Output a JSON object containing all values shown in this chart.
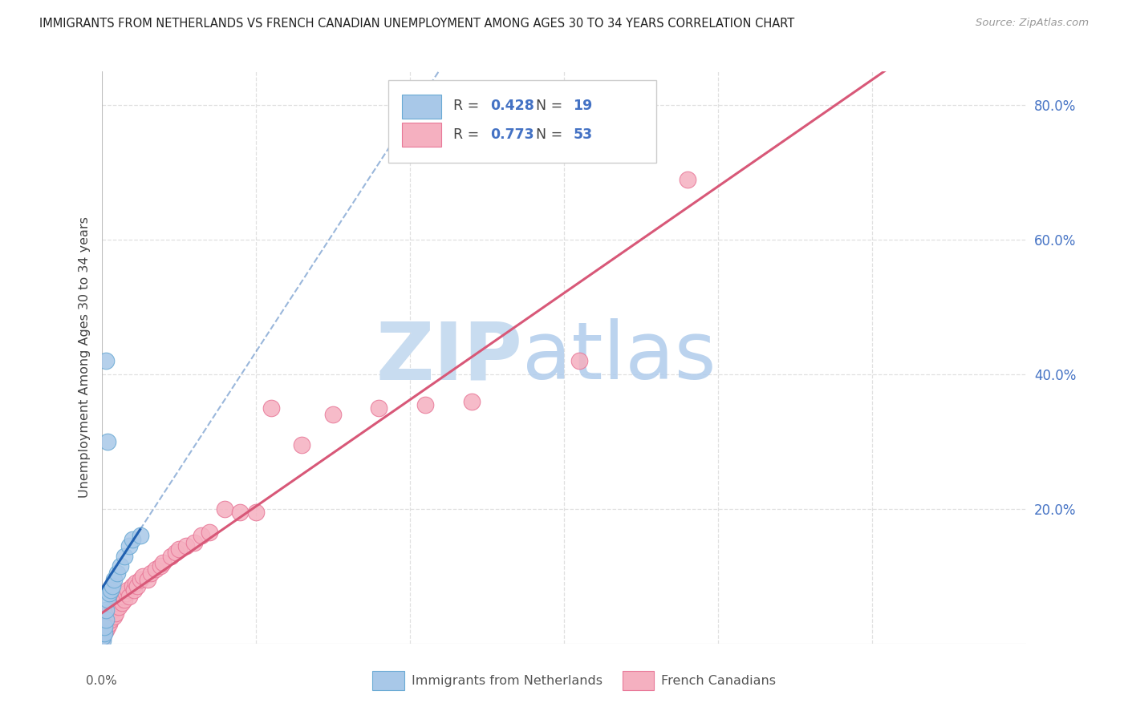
{
  "title": "IMMIGRANTS FROM NETHERLANDS VS FRENCH CANADIAN UNEMPLOYMENT AMONG AGES 30 TO 34 YEARS CORRELATION CHART",
  "source": "Source: ZipAtlas.com",
  "ylabel": "Unemployment Among Ages 30 to 34 years",
  "xlim": [
    0.0,
    0.6
  ],
  "ylim": [
    0.0,
    0.85
  ],
  "xtick_vals": [
    0.0,
    0.1,
    0.2,
    0.3,
    0.4,
    0.5,
    0.6
  ],
  "ytick_right_vals": [
    0.0,
    0.2,
    0.4,
    0.6,
    0.8
  ],
  "ytick_right_labels": [
    "",
    "20.0%",
    "40.0%",
    "60.0%",
    "80.0%"
  ],
  "netherlands_color": "#a8c8e8",
  "netherlands_edge": "#6aaad4",
  "french_color": "#f5b0c0",
  "french_edge": "#e87898",
  "netherlands_line_color": "#2060b0",
  "french_line_color": "#d85878",
  "R_netherlands": 0.428,
  "N_netherlands": 19,
  "R_french": 0.773,
  "N_french": 53,
  "watermark_zip_color": "#c8dcf0",
  "watermark_atlas_color": "#b0ccec",
  "background_color": "#ffffff",
  "grid_color": "#e0e0e0",
  "nl_x": [
    0.001,
    0.001,
    0.002,
    0.002,
    0.003,
    0.003,
    0.004,
    0.005,
    0.006,
    0.007,
    0.008,
    0.01,
    0.012,
    0.015,
    0.018,
    0.02,
    0.025,
    0.004,
    0.003
  ],
  "nl_y": [
    0.005,
    0.01,
    0.015,
    0.025,
    0.035,
    0.05,
    0.065,
    0.075,
    0.08,
    0.085,
    0.095,
    0.105,
    0.115,
    0.13,
    0.145,
    0.155,
    0.16,
    0.3,
    0.42
  ],
  "fr_x": [
    0.001,
    0.001,
    0.002,
    0.002,
    0.003,
    0.003,
    0.004,
    0.004,
    0.005,
    0.005,
    0.006,
    0.007,
    0.008,
    0.008,
    0.009,
    0.01,
    0.011,
    0.012,
    0.013,
    0.014,
    0.015,
    0.016,
    0.017,
    0.018,
    0.02,
    0.021,
    0.022,
    0.023,
    0.025,
    0.027,
    0.03,
    0.032,
    0.035,
    0.038,
    0.04,
    0.045,
    0.048,
    0.05,
    0.055,
    0.06,
    0.065,
    0.07,
    0.08,
    0.09,
    0.1,
    0.11,
    0.13,
    0.15,
    0.18,
    0.21,
    0.24,
    0.31,
    0.38
  ],
  "fr_y": [
    0.008,
    0.015,
    0.02,
    0.03,
    0.02,
    0.035,
    0.025,
    0.04,
    0.03,
    0.045,
    0.035,
    0.05,
    0.04,
    0.055,
    0.045,
    0.06,
    0.055,
    0.065,
    0.06,
    0.07,
    0.065,
    0.075,
    0.08,
    0.07,
    0.085,
    0.08,
    0.09,
    0.085,
    0.095,
    0.1,
    0.095,
    0.105,
    0.11,
    0.115,
    0.12,
    0.13,
    0.135,
    0.14,
    0.145,
    0.15,
    0.16,
    0.165,
    0.2,
    0.195,
    0.195,
    0.35,
    0.295,
    0.34,
    0.35,
    0.355,
    0.36,
    0.42,
    0.69
  ],
  "nl_line_x0": 0.0,
  "nl_line_x_solid_end": 0.025,
  "nl_line_x_dash_end": 0.35,
  "fr_line_x0": 0.0,
  "fr_line_x1": 0.6
}
